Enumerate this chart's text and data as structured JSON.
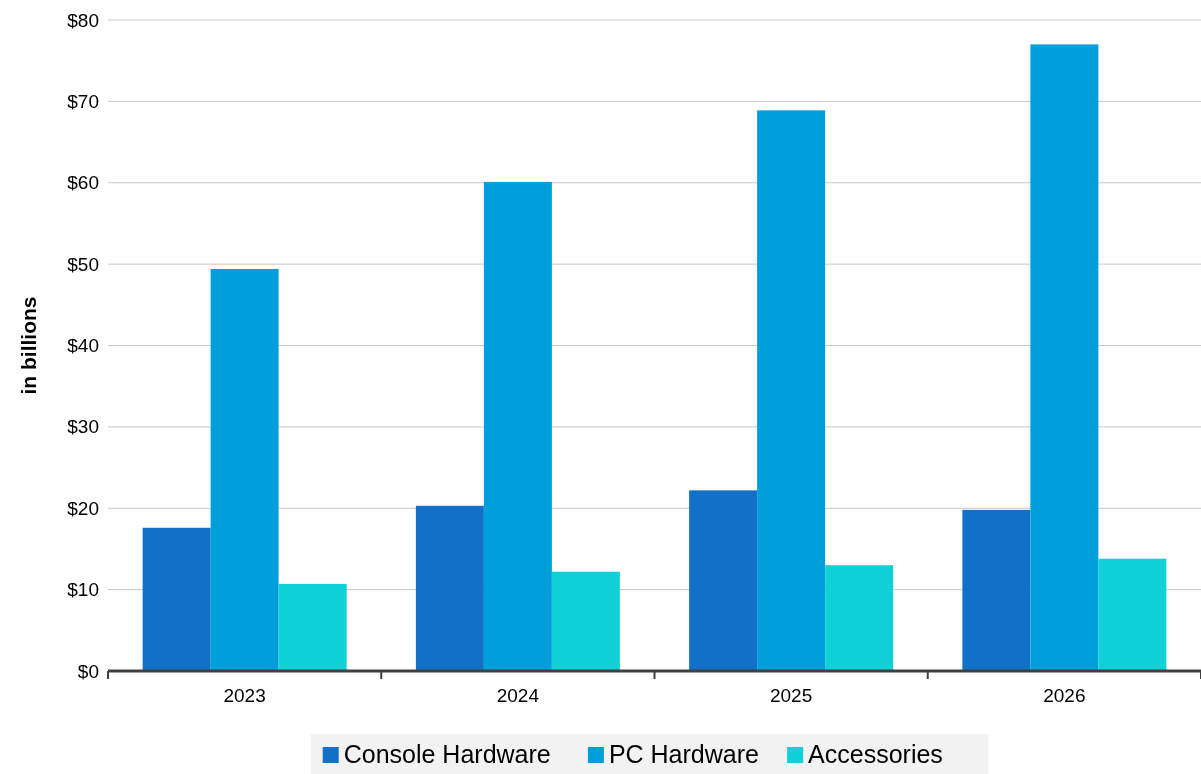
{
  "chart_data": {
    "type": "bar",
    "ylabel": "in billions",
    "categories": [
      "2023",
      "2024",
      "2025",
      "2026"
    ],
    "series": [
      {
        "name": "Console Hardware",
        "color": "#1170c8",
        "values": [
          17.6,
          20.3,
          22.2,
          19.8
        ]
      },
      {
        "name": "PC Hardware",
        "color": "#009fdb",
        "values": [
          49.4,
          60.1,
          68.9,
          77.0
        ]
      },
      {
        "name": "Accessories",
        "color": "#10d0d8",
        "values": [
          10.7,
          12.2,
          13.0,
          13.8
        ]
      }
    ],
    "ylim": [
      0,
      80
    ],
    "yticks": [
      {
        "value": 0,
        "label": "$0"
      },
      {
        "value": 10,
        "label": "$10"
      },
      {
        "value": 20,
        "label": "$20"
      },
      {
        "value": 30,
        "label": "$30"
      },
      {
        "value": 40,
        "label": "$40"
      },
      {
        "value": 50,
        "label": "$50"
      },
      {
        "value": 60,
        "label": "$60"
      },
      {
        "value": 70,
        "label": "$70"
      },
      {
        "value": 80,
        "label": "$80"
      }
    ],
    "grid": "y",
    "legend": "bottom"
  }
}
